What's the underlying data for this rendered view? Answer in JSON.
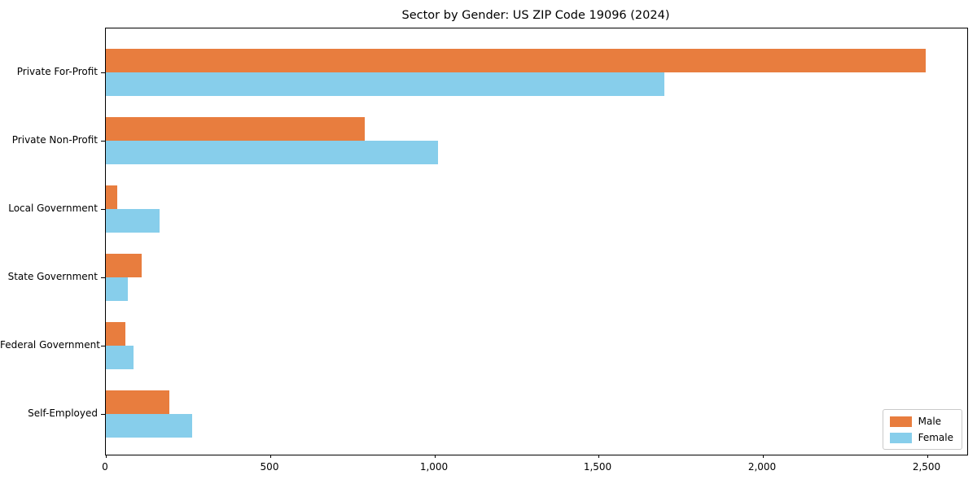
{
  "chart_data": {
    "type": "bar",
    "orientation": "horizontal",
    "title": "Sector by Gender: US ZIP Code 19096 (2024)",
    "categories": [
      "Private For-Profit",
      "Private Non-Profit",
      "Local Government",
      "State Government",
      "Federal Government",
      "Self-Employed"
    ],
    "series": [
      {
        "name": "Male",
        "color": "#E87D3E",
        "values": [
          2496,
          788,
          35,
          110,
          60,
          193
        ]
      },
      {
        "name": "Female",
        "color": "#87CEEB",
        "values": [
          1700,
          1011,
          164,
          67,
          85,
          263
        ]
      }
    ],
    "xlabel": "",
    "ylabel": "",
    "xlim": [
      0,
      2622
    ],
    "xticks": [
      0,
      500,
      1000,
      1500,
      2000,
      2500
    ],
    "xtick_labels": [
      "0",
      "500",
      "1,000",
      "1,500",
      "2,000",
      "2,500"
    ],
    "grid": false,
    "legend_position": "lower right",
    "colors": {
      "male": "#E87D3E",
      "female": "#87CEEB",
      "axis": "#000000",
      "background": "#ffffff"
    }
  }
}
